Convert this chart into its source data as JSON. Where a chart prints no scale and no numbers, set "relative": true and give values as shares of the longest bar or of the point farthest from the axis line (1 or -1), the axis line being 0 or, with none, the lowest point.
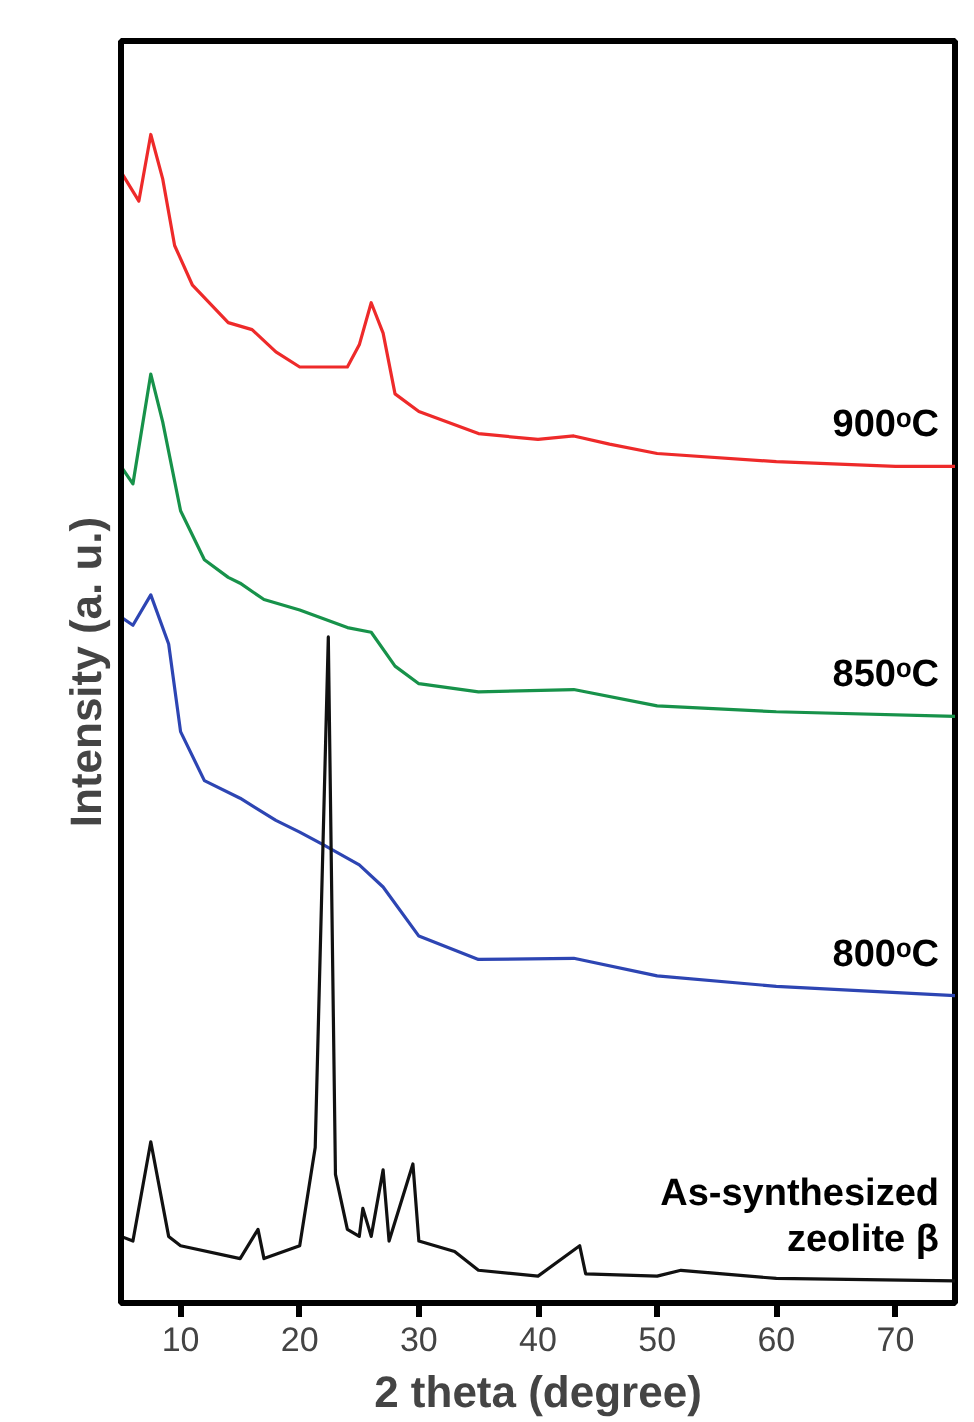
{
  "chart_data": {
    "type": "line",
    "relative": true,
    "xlabel": "2 theta (degree)",
    "ylabel": "Intensity (a. u.)",
    "xlim": [
      5,
      75
    ],
    "xticks": [
      10,
      20,
      30,
      40,
      50,
      60,
      70
    ],
    "tick_labels": "x",
    "grid": false,
    "series": [
      {
        "name": "900ᵒC",
        "color": "#ee2a2a",
        "x": [
          5,
          6.5,
          7.5,
          8.5,
          9.5,
          11,
          14,
          16,
          18,
          20,
          24,
          25,
          26,
          27,
          28,
          30,
          35,
          40,
          43,
          46,
          50,
          60,
          70,
          75
        ],
        "values": [
          0.968,
          0.943,
          1.0,
          0.962,
          0.905,
          0.871,
          0.839,
          0.833,
          0.814,
          0.801,
          0.801,
          0.82,
          0.856,
          0.83,
          0.778,
          0.763,
          0.744,
          0.739,
          0.742,
          0.735,
          0.727,
          0.72,
          0.716,
          0.716
        ]
      },
      {
        "name": "850ᵒC",
        "color": "#17924a",
        "x": [
          5,
          6,
          7.5,
          8.5,
          10,
          12,
          14,
          15,
          17,
          20,
          24,
          26,
          28,
          30,
          35,
          43,
          50,
          60,
          75
        ],
        "values": [
          0.716,
          0.701,
          0.795,
          0.754,
          0.678,
          0.636,
          0.621,
          0.616,
          0.602,
          0.593,
          0.578,
          0.574,
          0.545,
          0.53,
          0.523,
          0.525,
          0.511,
          0.506,
          0.502
        ]
      },
      {
        "name": "800ᵒC",
        "color": "#2d45b3",
        "x": [
          5,
          6,
          7.5,
          9,
          10,
          12,
          15,
          18,
          20,
          22,
          25,
          27,
          30,
          35,
          43,
          50,
          60,
          75
        ],
        "values": [
          0.587,
          0.58,
          0.606,
          0.564,
          0.489,
          0.447,
          0.432,
          0.413,
          0.403,
          0.392,
          0.375,
          0.356,
          0.314,
          0.294,
          0.295,
          0.28,
          0.271,
          0.263
        ]
      },
      {
        "name": "As-synthesized\nzeolite β",
        "color": "#111111",
        "x": [
          5,
          6,
          7.5,
          9,
          10,
          15,
          16.5,
          17,
          20,
          21.3,
          22.4,
          23,
          24,
          25,
          25.3,
          26,
          27,
          27.5,
          29.5,
          30,
          33,
          35,
          40,
          43.5,
          44,
          50,
          52,
          60,
          75
        ],
        "values": [
          0.057,
          0.053,
          0.138,
          0.057,
          0.049,
          0.038,
          0.063,
          0.038,
          0.049,
          0.133,
          0.57,
          0.11,
          0.063,
          0.057,
          0.081,
          0.057,
          0.114,
          0.053,
          0.119,
          0.053,
          0.044,
          0.028,
          0.023,
          0.049,
          0.025,
          0.023,
          0.028,
          0.021,
          0.019
        ]
      }
    ]
  }
}
